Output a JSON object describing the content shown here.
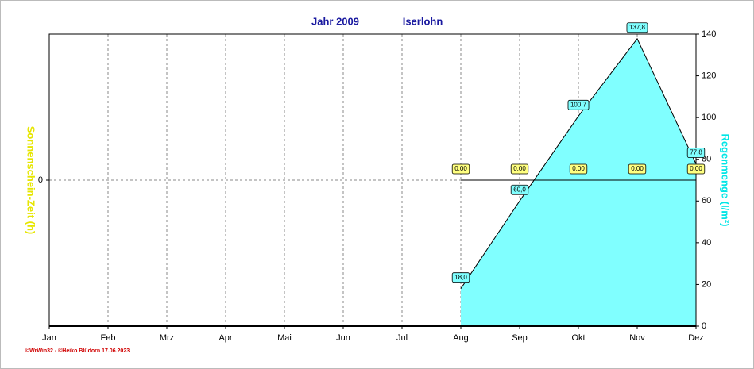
{
  "chart_data": {
    "type": "area",
    "title": "Jahr  2009",
    "subtitle": "Iserlohn",
    "ylabel": "Sonnenschein-Zeit  (h)",
    "y2label": "Regenmenge  (l/m²)",
    "credit": "©WrWin32 - ©Heiko Blüdorn  17.06.2023",
    "categories": [
      "Jan",
      "Feb",
      "Mrz",
      "Apr",
      "Mai",
      "Jun",
      "Jul",
      "Aug",
      "Sep",
      "Okt",
      "Nov",
      "Dez"
    ],
    "ylim": [
      -1,
      1
    ],
    "yticks": [
      0
    ],
    "y2lim": [
      0,
      140
    ],
    "y2ticks": [
      0,
      20,
      40,
      60,
      80,
      100,
      120,
      140
    ],
    "grid": true,
    "series": [
      {
        "color": "#80ffff",
        "axis": "y2",
        "values": [
          null,
          null,
          null,
          null,
          null,
          null,
          null,
          18.0,
          60.0,
          100.7,
          137.8,
          77.8
        ],
        "value_labels": [
          null,
          null,
          null,
          null,
          null,
          null,
          null,
          "18,0",
          "60,0",
          "100,7",
          "137,8",
          "77,8"
        ]
      },
      {
        "color": "#ffff80",
        "values": [
          null,
          null,
          null,
          null,
          null,
          null,
          null,
          0,
          0,
          0,
          0,
          0
        ],
        "value_labels": [
          null,
          null,
          null,
          null,
          null,
          null,
          null,
          "0,00",
          "0,00",
          "0,00",
          "0,00",
          "0,00"
        ]
      }
    ]
  }
}
